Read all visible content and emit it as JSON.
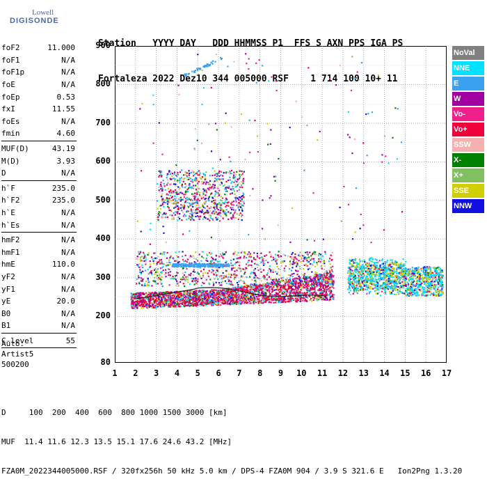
{
  "logo": {
    "line1": "Lowell",
    "line2": "DIGISONDE"
  },
  "header": {
    "line1": "Station   YYYY DAY   DDD HHMMSS P1  FFS S AXN PPS IGA PS",
    "line2": "Fortaleza 2022 Dez10 344 005000 RSF    1 714 100 10+ 11"
  },
  "params_group1": [
    {
      "name": "foF2",
      "value": "11.000"
    },
    {
      "name": "foF1",
      "value": "N/A"
    },
    {
      "name": "foF1p",
      "value": "N/A"
    },
    {
      "name": "foE",
      "value": "N/A"
    },
    {
      "name": "foEp",
      "value": "0.53"
    },
    {
      "name": "fxI",
      "value": "11.55"
    },
    {
      "name": "foEs",
      "value": "N/A"
    },
    {
      "name": "fmin",
      "value": "4.60"
    }
  ],
  "params_group2": [
    {
      "name": "MUF(D)",
      "value": "43.19"
    },
    {
      "name": "M(D)",
      "value": "3.93"
    },
    {
      "name": "D",
      "value": "N/A"
    }
  ],
  "params_group3": [
    {
      "name": "h`F",
      "value": "235.0"
    },
    {
      "name": "h`F2",
      "value": "235.0"
    },
    {
      "name": "h`E",
      "value": "N/A"
    },
    {
      "name": "h`Es",
      "value": "N/A"
    }
  ],
  "params_group4": [
    {
      "name": "hmF2",
      "value": "N/A"
    },
    {
      "name": "hmF1",
      "value": "N/A"
    },
    {
      "name": "hmE",
      "value": "110.0"
    },
    {
      "name": "yF2",
      "value": "N/A"
    },
    {
      "name": "yF1",
      "value": "N/A"
    },
    {
      "name": "yE",
      "value": "20.0"
    },
    {
      "name": "B0",
      "value": "N/A"
    },
    {
      "name": "B1",
      "value": "N/A"
    }
  ],
  "params_group5": [
    {
      "name": "C-level",
      "value": "55"
    }
  ],
  "auto": {
    "line1": "Auto:",
    "line2": "Artist5",
    "line3": "500200"
  },
  "legend": [
    {
      "label": "NoVal",
      "color": "#808080"
    },
    {
      "label": "NNE",
      "color": "#00e0ff"
    },
    {
      "label": "E",
      "color": "#3aa0f0"
    },
    {
      "label": "W",
      "color": "#a000a0"
    },
    {
      "label": "Vo-",
      "color": "#f0208a"
    },
    {
      "label": "Vo+",
      "color": "#f0003a"
    },
    {
      "label": "SSW",
      "color": "#f7b0b0"
    },
    {
      "label": "X-",
      "color": "#008000"
    },
    {
      "label": "X+",
      "color": "#80c060"
    },
    {
      "label": "SSE",
      "color": "#d0d000"
    },
    {
      "label": "NNW",
      "color": "#1010e0"
    }
  ],
  "chart_data": {
    "type": "scatter",
    "title": "",
    "xlabel": "",
    "ylabel": "",
    "xlim": [
      1,
      17
    ],
    "ylim": [
      80,
      900
    ],
    "x_ticks": [
      "1",
      "2",
      "3",
      "4",
      "5",
      "6",
      "7",
      "8",
      "9",
      "10",
      "11",
      "12",
      "13",
      "14",
      "15",
      "16",
      "17"
    ],
    "y_ticks": [
      "80",
      "200",
      "300",
      "400",
      "500",
      "600",
      "700",
      "800",
      "900"
    ],
    "grid": "dotted",
    "legend_placement": "right"
  },
  "footer": {
    "line1": "D     100  200  400  600  800 1000 1500 3000 [km]",
    "line2": "MUF  11.4 11.6 12.3 13.5 15.1 17.6 24.6 43.2 [MHz]",
    "line3": "FZA0M_2022344005000.RSF / 320fx256h 50 kHz 5.0 km / DPS-4 FZA0M 904 / 3.9 S 321.6 E   Ion2Png 1.3.20"
  }
}
